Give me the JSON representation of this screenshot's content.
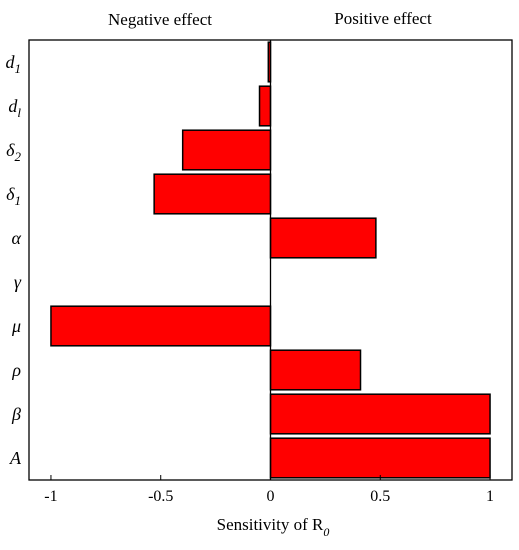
{
  "chart_data": {
    "type": "bar",
    "orientation": "horizontal",
    "header_left": "Negative effect",
    "header_right": "Positive effect",
    "xlabel": "Sensitivity of R",
    "xlabel_subscript": "0",
    "xlim": [
      -1.1,
      1.1
    ],
    "xticks": [
      {
        "value": -1,
        "label": "-1"
      },
      {
        "value": -0.5,
        "label": "-0.5"
      },
      {
        "value": 0,
        "label": "0"
      },
      {
        "value": 0.5,
        "label": "0.5"
      },
      {
        "value": 1,
        "label": "1"
      }
    ],
    "categories": [
      {
        "base": "d",
        "sub": "1"
      },
      {
        "base": "d",
        "sub": "l"
      },
      {
        "base": "δ",
        "sub": "2"
      },
      {
        "base": "δ",
        "sub": "1"
      },
      {
        "base": "α",
        "sub": ""
      },
      {
        "base": "γ",
        "sub": ""
      },
      {
        "base": "μ",
        "sub": ""
      },
      {
        "base": "ρ",
        "sub": ""
      },
      {
        "base": "β",
        "sub": ""
      },
      {
        "base": "A",
        "sub": ""
      }
    ],
    "values": [
      -0.01,
      -0.05,
      -0.4,
      -0.53,
      0.48,
      0,
      -1,
      0.41,
      1,
      1
    ],
    "bar_color": "#ff0000",
    "grid": false,
    "legend": "none"
  }
}
